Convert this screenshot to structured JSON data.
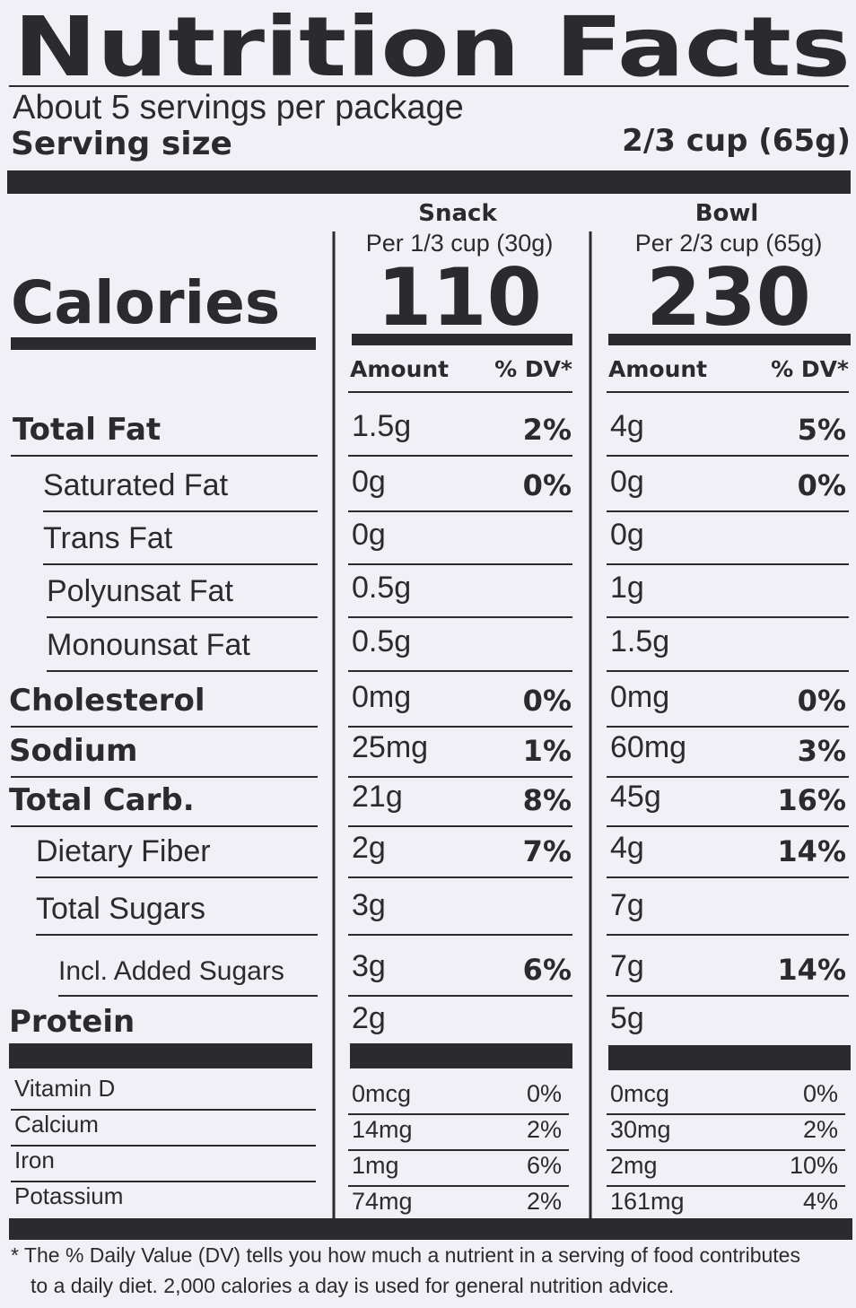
{
  "title": "Nutrition Facts",
  "servings": "About 5 servings per package",
  "serving_size_label": "Serving size",
  "serving_size": "2/3 cup (65g)",
  "calories_label": "Calories",
  "columns": [
    {
      "name": "Snack",
      "per": "Per 1/3 cup (30g)",
      "calories": 110,
      "amount_header": "Amount",
      "dv_header": "% DV*"
    },
    {
      "name": "Bowl",
      "per": "Per 2/3 cup (65g)",
      "calories": 230,
      "amount_header": "Amount",
      "dv_header": "% DV*"
    }
  ],
  "nutrients": [
    {
      "name": "Total Fat",
      "snack": {
        "amount": "1.5g",
        "dv": "2%"
      },
      "bowl": {
        "amount": "4g",
        "dv": "5%"
      }
    },
    {
      "name": "Saturated Fat",
      "snack": {
        "amount": "0g",
        "dv": "0%"
      },
      "bowl": {
        "amount": "0g",
        "dv": "0%"
      }
    },
    {
      "name": "Trans Fat",
      "snack": {
        "amount": "0g",
        "dv": null
      },
      "bowl": {
        "amount": "0g",
        "dv": null
      }
    },
    {
      "name": "Polyunsat Fat",
      "snack": {
        "amount": "0.5g",
        "dv": null
      },
      "bowl": {
        "amount": "1g",
        "dv": null
      }
    },
    {
      "name": "Monounsat Fat",
      "snack": {
        "amount": "0.5g",
        "dv": null
      },
      "bowl": {
        "amount": "1.5g",
        "dv": null
      }
    },
    {
      "name": "Cholesterol",
      "snack": {
        "amount": "0mg",
        "dv": "0%"
      },
      "bowl": {
        "amount": "0mg",
        "dv": "0%"
      }
    },
    {
      "name": "Sodium",
      "snack": {
        "amount": "25mg",
        "dv": "1%"
      },
      "bowl": {
        "amount": "60mg",
        "dv": "3%"
      }
    },
    {
      "name": "Total Carb.",
      "snack": {
        "amount": "21g",
        "dv": "8%"
      },
      "bowl": {
        "amount": "45g",
        "dv": "16%"
      }
    },
    {
      "name": "Dietary Fiber",
      "snack": {
        "amount": "2g",
        "dv": "7%"
      },
      "bowl": {
        "amount": "4g",
        "dv": "14%"
      }
    },
    {
      "name": "Total Sugars",
      "snack": {
        "amount": "3g",
        "dv": null
      },
      "bowl": {
        "amount": "7g",
        "dv": null
      }
    },
    {
      "name": "Incl. Added Sugars",
      "snack": {
        "amount": "3g",
        "dv": "6%"
      },
      "bowl": {
        "amount": "7g",
        "dv": "14%"
      }
    },
    {
      "name": "Protein",
      "snack": {
        "amount": "2g",
        "dv": null
      },
      "bowl": {
        "amount": "5g",
        "dv": null
      }
    }
  ],
  "vitamins": [
    {
      "name": "Vitamin D",
      "snack": {
        "amount": "0mcg",
        "dv": "0%"
      },
      "bowl": {
        "amount": "0mcg",
        "dv": "0%"
      }
    },
    {
      "name": "Calcium",
      "snack": {
        "amount": "14mg",
        "dv": "2%"
      },
      "bowl": {
        "amount": "30mg",
        "dv": "2%"
      }
    },
    {
      "name": "Iron",
      "snack": {
        "amount": "1mg",
        "dv": "6%"
      },
      "bowl": {
        "amount": "2mg",
        "dv": "10%"
      }
    },
    {
      "name": "Potassium",
      "snack": {
        "amount": "74mg",
        "dv": "2%"
      },
      "bowl": {
        "amount": "161mg",
        "dv": "4%"
      }
    }
  ],
  "footnote": [
    "* The % Daily Value (DV) tells you how much a nutrient in a serving of food contributes",
    "to a daily diet. 2,000 calories a day is used for general nutrition advice."
  ]
}
